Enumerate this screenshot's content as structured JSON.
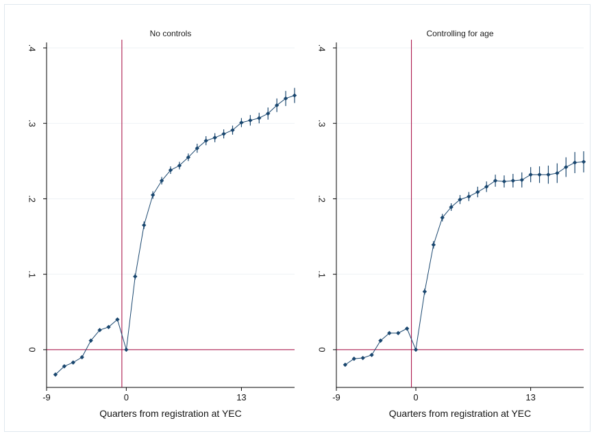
{
  "figure": {
    "colors": {
      "background": "#ffffff",
      "frame": "#dfe8ee",
      "grid": "#eef2f5",
      "axis": "#000000",
      "series": "#1a476f",
      "reference_line": "#a3003a"
    }
  },
  "chart_data": [
    {
      "type": "line",
      "title": "No controls",
      "xlabel": "Quarters from registration at YEC",
      "ylabel": "",
      "xlim": [
        -9,
        19
      ],
      "ylim": [
        -0.05,
        0.4
      ],
      "xticks": [
        -9,
        0,
        13
      ],
      "xtick_labels": [
        "-9",
        "0",
        "13"
      ],
      "yticks": [
        0,
        0.1,
        0.2,
        0.3,
        0.4
      ],
      "ytick_labels": [
        "0",
        ".1",
        ".2",
        ".3",
        ".4"
      ],
      "grid": true,
      "legend": "none",
      "reference_lines": {
        "x": -0.5,
        "y": 0
      },
      "series": [
        {
          "x": [
            -8,
            -7,
            -6,
            -5,
            -4,
            -3,
            -2,
            -1,
            0,
            1,
            2,
            3,
            4,
            5,
            6,
            7,
            8,
            9,
            10,
            11,
            12,
            13,
            14,
            15,
            16,
            17,
            18,
            19
          ],
          "y": [
            -0.033,
            -0.022,
            -0.017,
            -0.01,
            0.012,
            0.026,
            0.03,
            0.04,
            0.0,
            0.097,
            0.165,
            0.205,
            0.224,
            0.238,
            0.244,
            0.255,
            0.267,
            0.277,
            0.281,
            0.286,
            0.291,
            0.301,
            0.304,
            0.307,
            0.313,
            0.324,
            0.333,
            0.337
          ],
          "ci_low": [
            -0.035,
            -0.024,
            -0.019,
            -0.012,
            0.01,
            0.024,
            0.028,
            0.038,
            0.0,
            0.093,
            0.16,
            0.2,
            0.219,
            0.233,
            0.239,
            0.25,
            0.261,
            0.271,
            0.275,
            0.28,
            0.285,
            0.295,
            0.297,
            0.3,
            0.305,
            0.315,
            0.323,
            0.327
          ],
          "ci_high": [
            -0.031,
            -0.02,
            -0.015,
            -0.008,
            0.014,
            0.028,
            0.032,
            0.042,
            0.0,
            0.101,
            0.17,
            0.21,
            0.229,
            0.243,
            0.249,
            0.26,
            0.273,
            0.283,
            0.287,
            0.292,
            0.297,
            0.307,
            0.311,
            0.314,
            0.321,
            0.333,
            0.343,
            0.347
          ]
        }
      ]
    },
    {
      "type": "line",
      "title": "Controlling for age",
      "xlabel": "Quarters from registration at YEC",
      "ylabel": "",
      "xlim": [
        -9,
        19
      ],
      "ylim": [
        -0.05,
        0.4
      ],
      "xticks": [
        -9,
        0,
        13
      ],
      "xtick_labels": [
        "-9",
        "0",
        "13"
      ],
      "yticks": [
        0,
        0.1,
        0.2,
        0.3,
        0.4
      ],
      "ytick_labels": [
        "0",
        ".1",
        ".2",
        ".3",
        ".4"
      ],
      "grid": true,
      "legend": "none",
      "reference_lines": {
        "x": -0.5,
        "y": 0
      },
      "series": [
        {
          "x": [
            -8,
            -7,
            -6,
            -5,
            -4,
            -3,
            -2,
            -1,
            0,
            1,
            2,
            3,
            4,
            5,
            6,
            7,
            8,
            9,
            10,
            11,
            12,
            13,
            14,
            15,
            16,
            17,
            18,
            19
          ],
          "y": [
            -0.02,
            -0.012,
            -0.011,
            -0.007,
            0.012,
            0.022,
            0.022,
            0.028,
            0.0,
            0.077,
            0.139,
            0.175,
            0.189,
            0.199,
            0.203,
            0.209,
            0.216,
            0.224,
            0.223,
            0.224,
            0.225,
            0.232,
            0.232,
            0.232,
            0.234,
            0.242,
            0.248,
            0.249
          ],
          "ci_low": [
            -0.022,
            -0.014,
            -0.013,
            -0.009,
            0.01,
            0.02,
            0.02,
            0.026,
            0.0,
            0.073,
            0.134,
            0.17,
            0.184,
            0.193,
            0.197,
            0.202,
            0.209,
            0.216,
            0.215,
            0.215,
            0.215,
            0.222,
            0.221,
            0.22,
            0.221,
            0.229,
            0.234,
            0.235
          ],
          "ci_high": [
            -0.018,
            -0.01,
            -0.009,
            -0.005,
            0.014,
            0.024,
            0.024,
            0.03,
            0.0,
            0.081,
            0.144,
            0.18,
            0.194,
            0.205,
            0.209,
            0.216,
            0.223,
            0.232,
            0.231,
            0.233,
            0.235,
            0.242,
            0.243,
            0.244,
            0.247,
            0.255,
            0.262,
            0.263
          ]
        }
      ]
    }
  ]
}
